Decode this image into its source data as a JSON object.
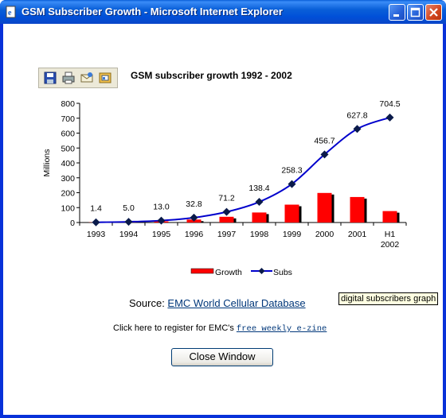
{
  "window": {
    "title": "GSM Subscriber Growth - Microsoft Internet Explorer",
    "controls": [
      "minimize",
      "maximize",
      "close"
    ]
  },
  "toolbar": {
    "icons": [
      "save-icon",
      "print-icon",
      "email-icon",
      "export-icon"
    ]
  },
  "chart_data": {
    "type": "bar",
    "title": "GSM subscriber growth 1992 - 2002",
    "ylabel": "Millions",
    "xlabel": "",
    "ylim": [
      0,
      800
    ],
    "yticks": [
      0,
      100,
      200,
      300,
      400,
      500,
      600,
      700,
      800
    ],
    "categories": [
      "1993",
      "1994",
      "1995",
      "1996",
      "1997",
      "1998",
      "1999",
      "2000",
      "2001",
      "H1 2002"
    ],
    "series": [
      {
        "name": "Growth",
        "kind": "bar",
        "color": "#ff0000",
        "values": [
          1.4,
          3.6,
          8.0,
          19.8,
          38.4,
          67.2,
          119.9,
          198.4,
          171.1,
          76.7
        ]
      },
      {
        "name": "Subs",
        "kind": "line",
        "color": "#0000cc",
        "values": [
          1.4,
          5.0,
          13.0,
          32.8,
          71.2,
          138.4,
          258.3,
          456.7,
          627.8,
          704.5
        ]
      }
    ],
    "data_labels": [
      "1.4",
      "5.0",
      "13.0",
      "32.8",
      "71.2",
      "138.4",
      "258.3",
      "456.7",
      "627.8",
      "704.5"
    ],
    "legend_position": "bottom"
  },
  "source": {
    "prefix": "Source: ",
    "link": "EMC World Cellular Database"
  },
  "register": {
    "prefix": "Click here to register for EMC's ",
    "link": "free weekly e-zine"
  },
  "tooltip": "digital subscribers graph",
  "close_button": "Close Window"
}
